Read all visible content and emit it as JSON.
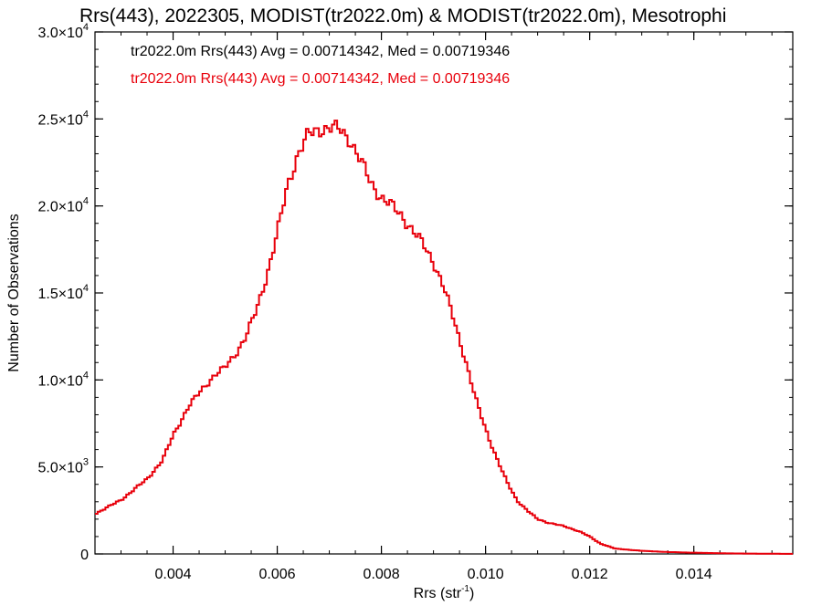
{
  "chart_data": {
    "type": "line",
    "style": "step-histogram",
    "title": "Rrs(443), 2022305, MODIST(tr2022.0m) & MODIST(tr2022.0m), Mesotrophi",
    "xlabel": "Rrs (str",
    "xlabel_exp": "-1",
    "xlabel_close": ")",
    "ylabel": "Number of Observations",
    "xlim": [
      0.0025,
      0.0159
    ],
    "ylim": [
      0,
      30000
    ],
    "x_ticks": [
      {
        "value": 0.004,
        "label": "0.004"
      },
      {
        "value": 0.006,
        "label": "0.006"
      },
      {
        "value": 0.008,
        "label": "0.008"
      },
      {
        "value": 0.01,
        "label": "0.010"
      },
      {
        "value": 0.012,
        "label": "0.012"
      },
      {
        "value": 0.014,
        "label": "0.014"
      }
    ],
    "y_ticks": [
      {
        "value": 0,
        "mant": "0",
        "exp": ""
      },
      {
        "value": 5000,
        "mant": "5.0×10",
        "exp": "3"
      },
      {
        "value": 10000,
        "mant": "1.0×10",
        "exp": "4"
      },
      {
        "value": 15000,
        "mant": "1.5×10",
        "exp": "4"
      },
      {
        "value": 20000,
        "mant": "2.0×10",
        "exp": "4"
      },
      {
        "value": 25000,
        "mant": "2.5×10",
        "exp": "4"
      },
      {
        "value": 30000,
        "mant": "3.0×10",
        "exp": "4"
      }
    ],
    "annotations": [
      {
        "text": "tr2022.0m Rrs(443) Avg = 0.00714342, Med = 0.00719346",
        "color": "#000000"
      },
      {
        "text": "tr2022.0m Rrs(443) Avg = 0.00714342, Med = 0.00719346",
        "color": "#e8000b"
      }
    ],
    "series": [
      {
        "color": "#e8000b",
        "points": [
          [
            0.0025,
            2300
          ],
          [
            0.003,
            3100
          ],
          [
            0.0035,
            4300
          ],
          [
            0.0038,
            5400
          ],
          [
            0.004,
            6800
          ],
          [
            0.0043,
            8500
          ],
          [
            0.0046,
            9600
          ],
          [
            0.0048,
            10300
          ],
          [
            0.005,
            10700
          ],
          [
            0.0052,
            11500
          ],
          [
            0.0054,
            12500
          ],
          [
            0.0056,
            14000
          ],
          [
            0.0058,
            16000
          ],
          [
            0.006,
            18400
          ],
          [
            0.0062,
            21200
          ],
          [
            0.0064,
            23000
          ],
          [
            0.0066,
            24100
          ],
          [
            0.0068,
            24400
          ],
          [
            0.007,
            24500
          ],
          [
            0.0072,
            24400
          ],
          [
            0.0074,
            23800
          ],
          [
            0.0076,
            22600
          ],
          [
            0.0078,
            21300
          ],
          [
            0.008,
            20500
          ],
          [
            0.0082,
            20000
          ],
          [
            0.0084,
            19400
          ],
          [
            0.0086,
            18600
          ],
          [
            0.0088,
            17800
          ],
          [
            0.009,
            16800
          ],
          [
            0.0092,
            15300
          ],
          [
            0.0094,
            13400
          ],
          [
            0.0096,
            11300
          ],
          [
            0.0098,
            9000
          ],
          [
            0.01,
            7200
          ],
          [
            0.0102,
            5600
          ],
          [
            0.0104,
            4200
          ],
          [
            0.0106,
            3100
          ],
          [
            0.0108,
            2500
          ],
          [
            0.011,
            2000
          ],
          [
            0.0112,
            1800
          ],
          [
            0.0115,
            1600
          ],
          [
            0.0118,
            1300
          ],
          [
            0.012,
            1000
          ],
          [
            0.0122,
            600
          ],
          [
            0.0125,
            300
          ],
          [
            0.013,
            180
          ],
          [
            0.0135,
            110
          ],
          [
            0.014,
            70
          ],
          [
            0.0145,
            40
          ],
          [
            0.015,
            20
          ],
          [
            0.0159,
            5
          ]
        ]
      }
    ]
  }
}
